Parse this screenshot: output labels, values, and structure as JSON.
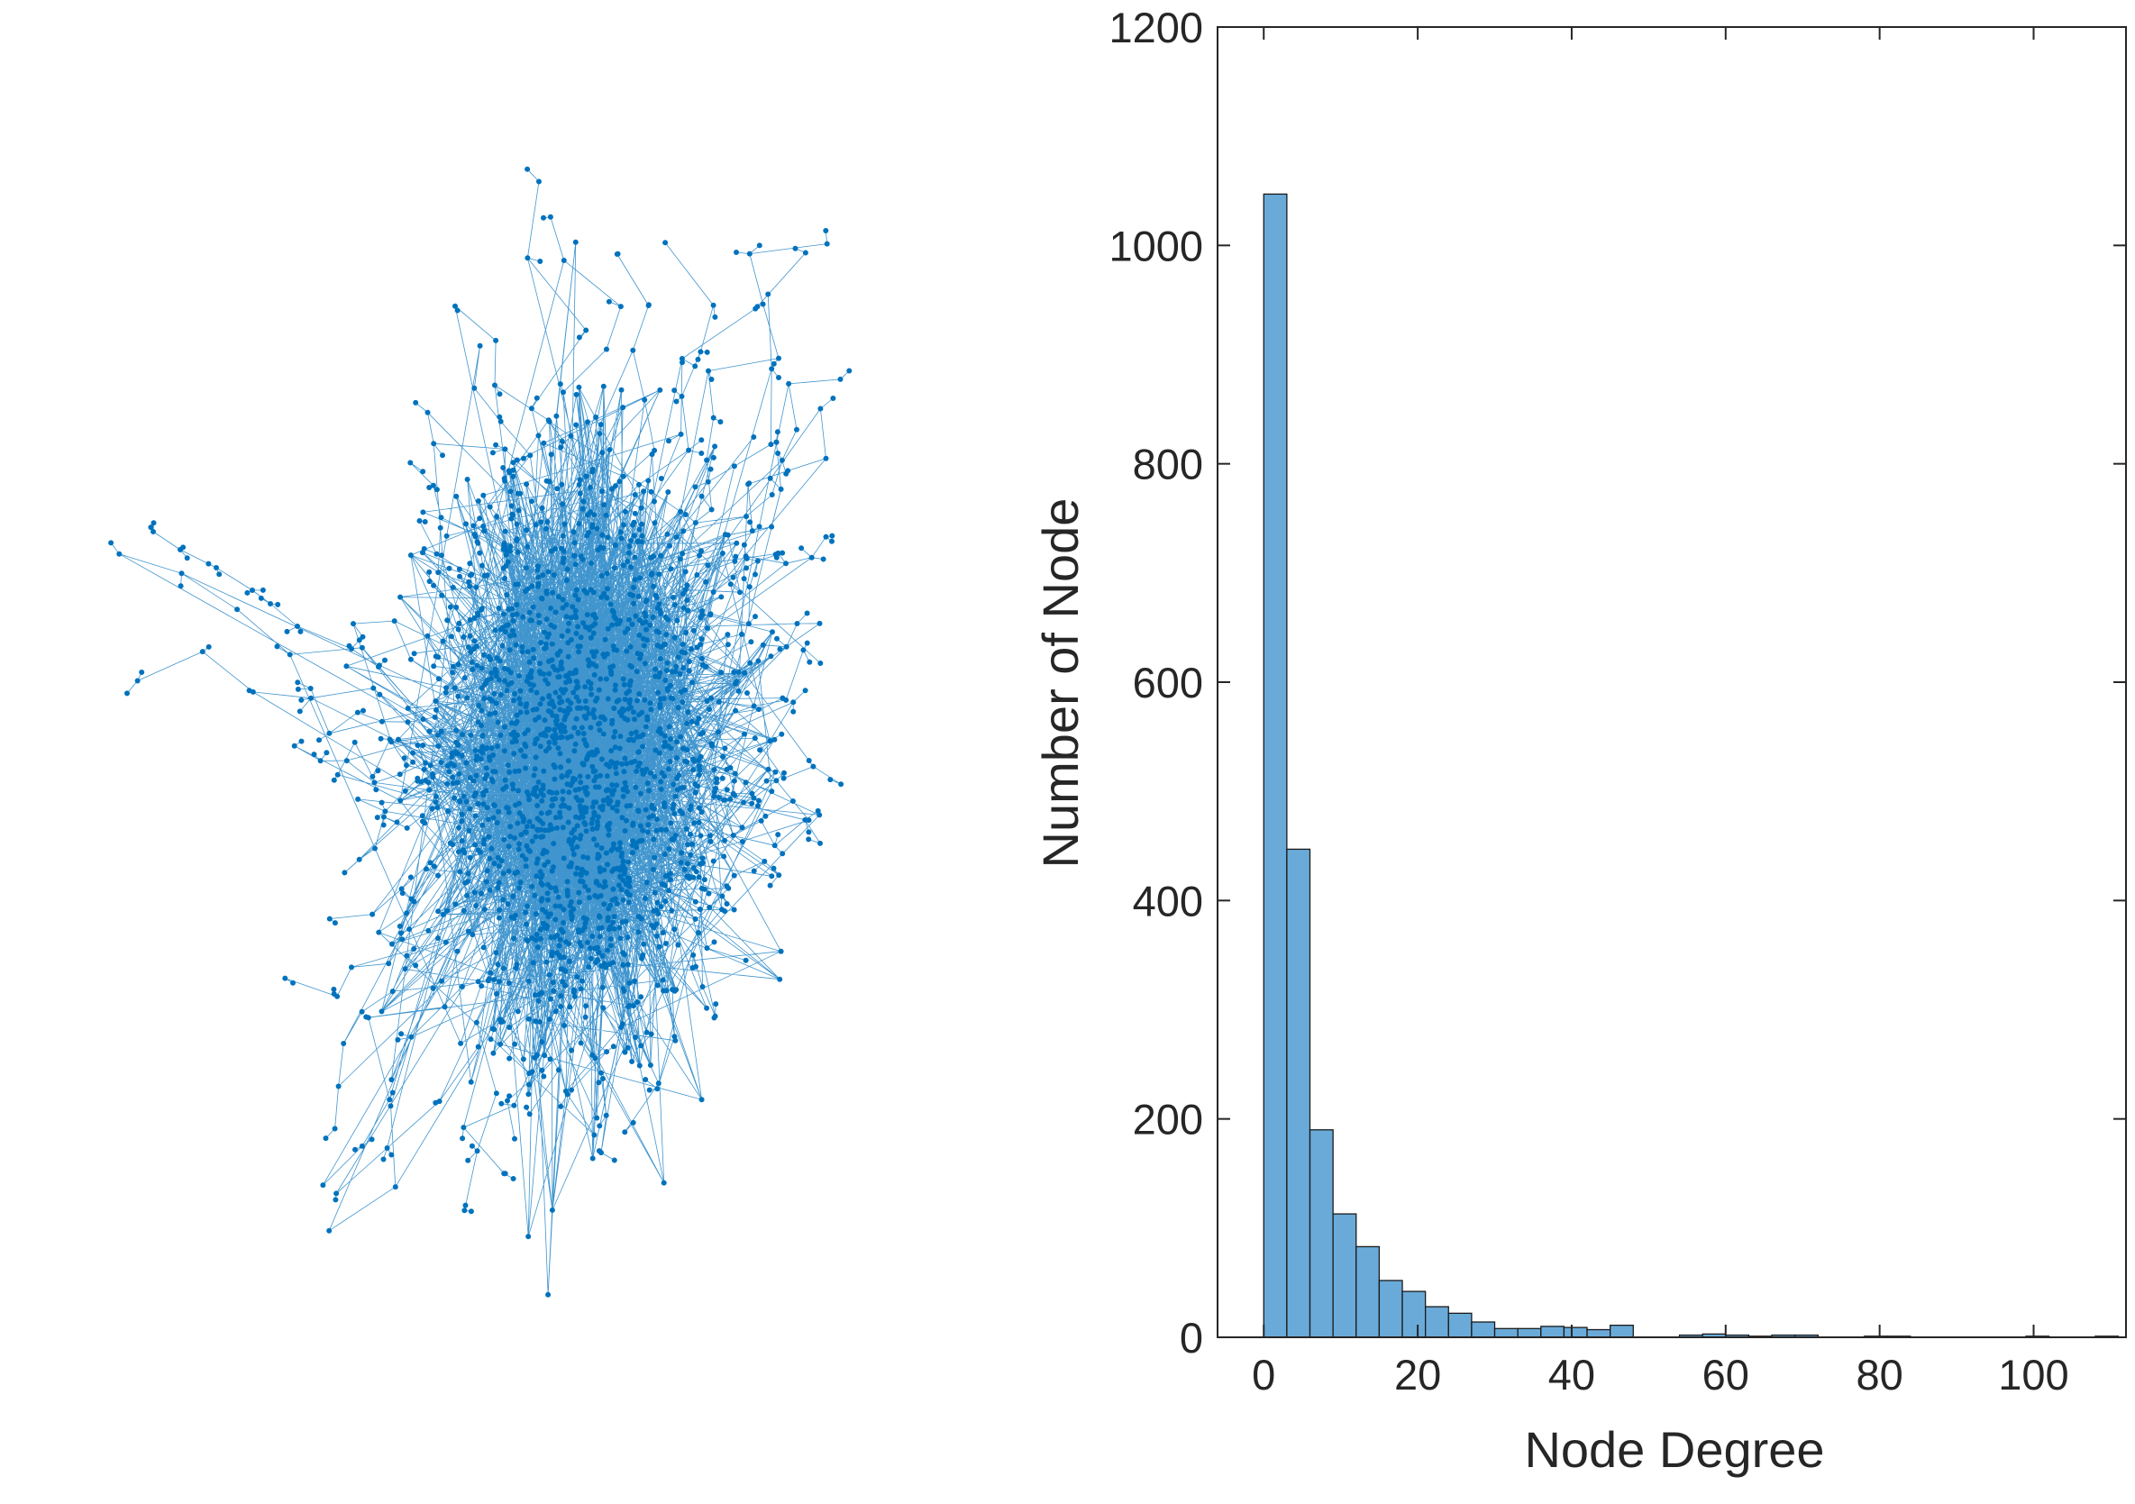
{
  "colors": {
    "network": "#0072BD",
    "bar_fill": "#6AAAD8",
    "bar_edge": "#1A1A1A",
    "axis": "#262626",
    "background": "#FFFFFF"
  },
  "chart_data": [
    {
      "type": "network",
      "description_visible": "graph plot of nodes and edges, dense central cluster with radiating branches",
      "node_marker": "filled dot",
      "edge_style": "thin line",
      "axes_visible": false
    },
    {
      "type": "bar",
      "subtype": "histogram",
      "xlabel": "Node Degree",
      "ylabel": "Number of Node",
      "xlim": [
        -6,
        112
      ],
      "ylim": [
        0,
        1200
      ],
      "x_ticks": [
        0,
        20,
        40,
        60,
        80,
        100
      ],
      "y_ticks": [
        0,
        200,
        400,
        600,
        800,
        1000,
        1200
      ],
      "bin_width": 3,
      "bin_edges_start": 0,
      "values": [
        1047,
        447,
        190,
        113,
        83,
        52,
        42,
        28,
        22,
        14,
        8,
        8,
        10,
        9,
        7,
        11,
        0,
        0,
        2,
        3,
        2,
        1,
        2,
        2,
        0,
        0,
        1,
        1,
        0,
        0,
        0,
        0,
        0,
        1,
        0,
        0,
        1
      ],
      "grid": false,
      "box": true
    }
  ]
}
